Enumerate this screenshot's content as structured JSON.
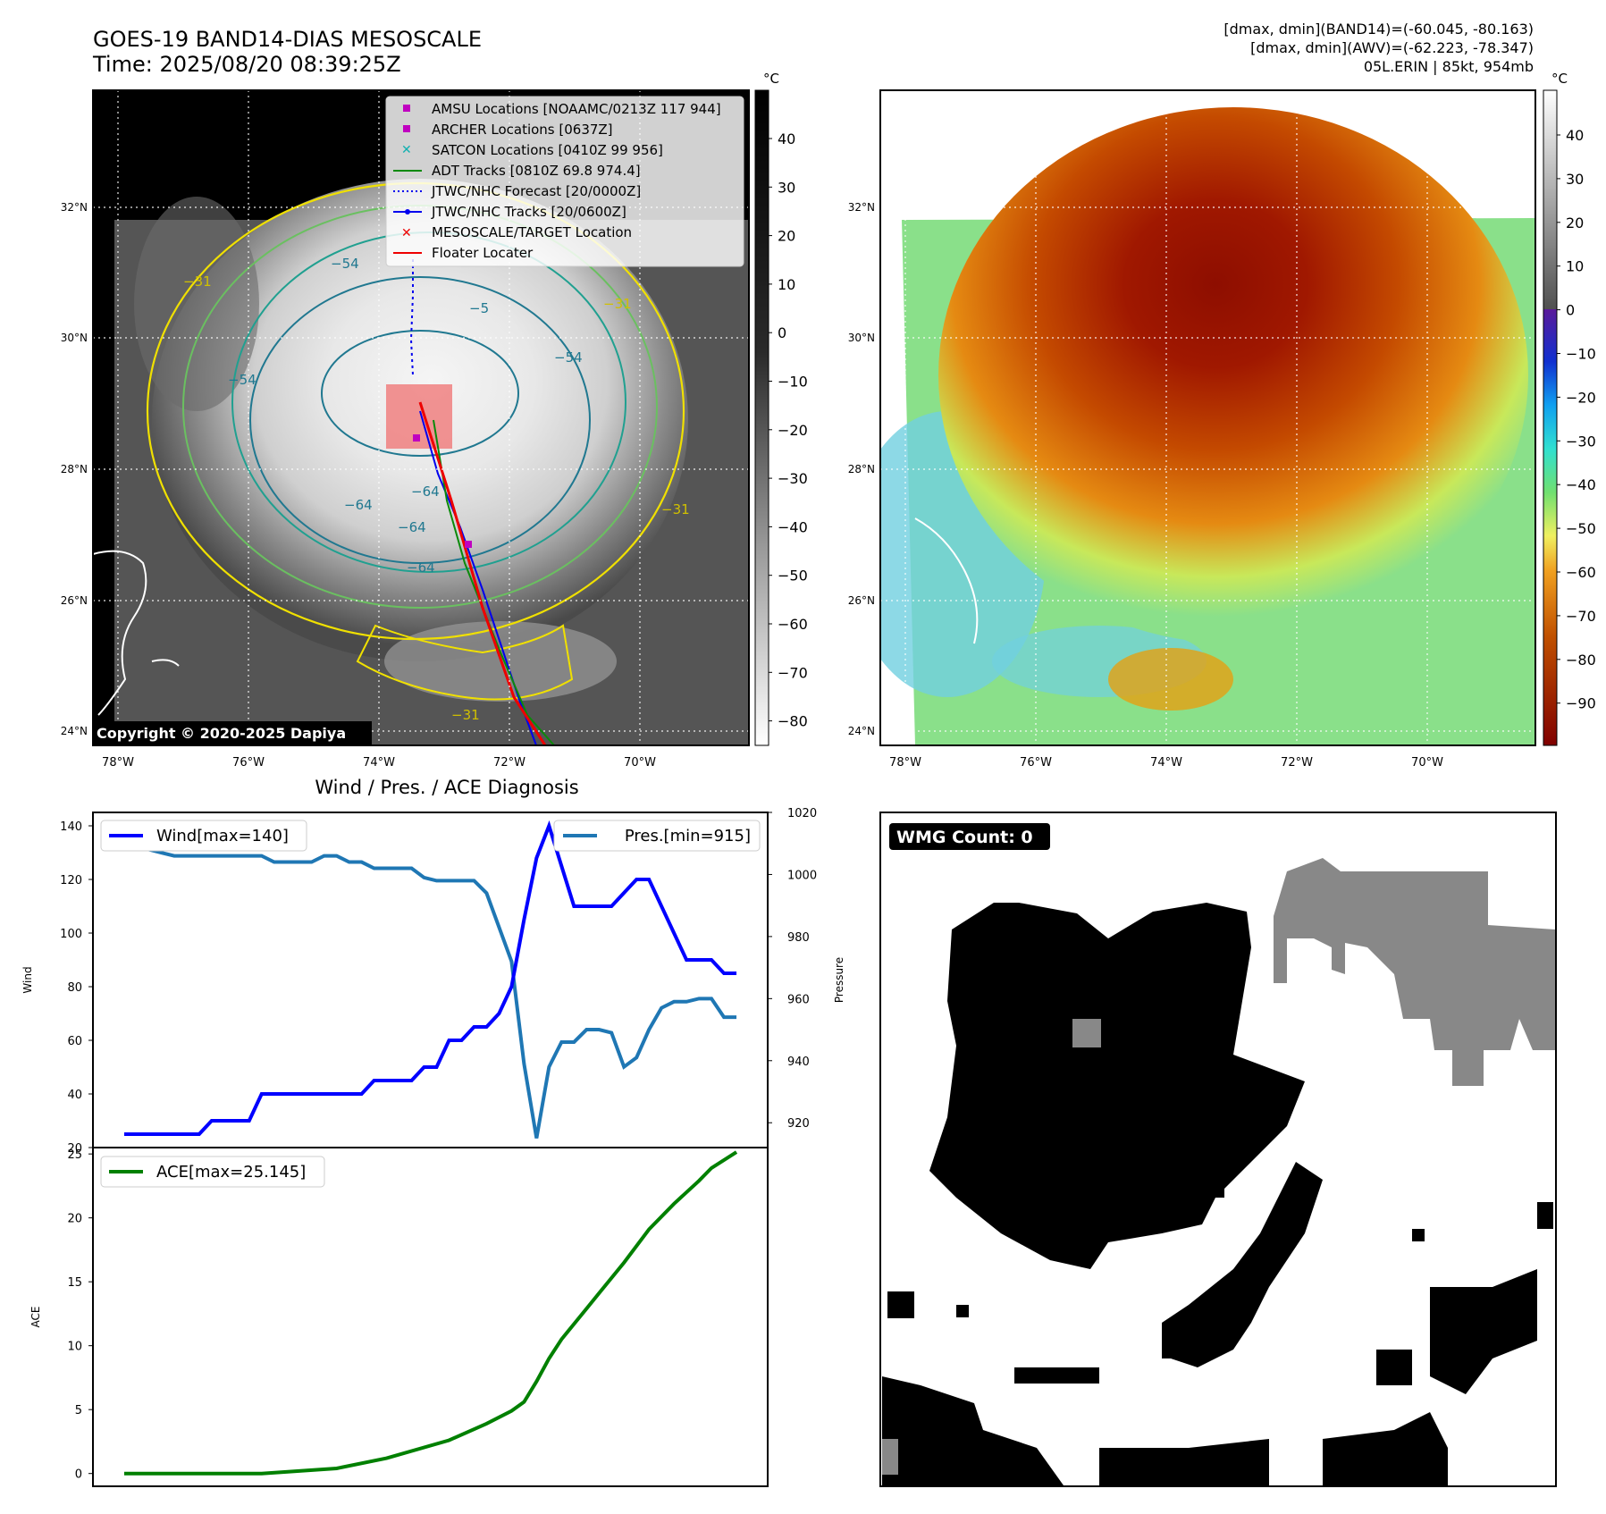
{
  "header": {
    "title_line1": "GOES-19 BAND14-DIAS MESOSCALE",
    "title_line2": "Time: 2025/08/20 08:39:25Z",
    "info_line1": "[dmax, dmin](BAND14)=(-60.045, -80.163)",
    "info_line2": "[dmax, dmin](AWV)=(-62.223, -78.347)",
    "info_line3": "05L.ERIN | 85kt, 954mb"
  },
  "colorbar_unit": "°C",
  "map_axes": {
    "lon_ticks": [
      "78°W",
      "76°W",
      "74°W",
      "72°W",
      "70°W"
    ],
    "lat_ticks": [
      "32°N",
      "30°N",
      "28°N",
      "26°N",
      "24°N"
    ]
  },
  "ir_colorbar_ticks": [
    "40",
    "30",
    "20",
    "10",
    "0",
    "−10",
    "−20",
    "−30",
    "−40",
    "−50",
    "−60",
    "−70",
    "−80"
  ],
  "awv_colorbar_ticks": [
    "40",
    "30",
    "20",
    "10",
    "0",
    "−10",
    "−20",
    "−30",
    "−40",
    "−50",
    "−60",
    "−70",
    "−80",
    "−90"
  ],
  "contour_labels": [
    "−64",
    "−64",
    "−64",
    "−64",
    "−54",
    "−54",
    "−54",
    "−5",
    "−31",
    "−31",
    "−31",
    "−31"
  ],
  "legend": [
    {
      "label": "AMSU Locations [NOAAMC/0213Z 117 944]",
      "color": "#c000c0",
      "marker": "square"
    },
    {
      "label": "ARCHER Locations [0637Z]",
      "color": "#c000c0",
      "marker": "square"
    },
    {
      "label": "SATCON Locations [0410Z 99 956]",
      "color": "#10b0b0",
      "marker": "x"
    },
    {
      "label": "ADT Tracks [0810Z 69.8 974.4]",
      "color": "#0a8a0a",
      "marker": "line"
    },
    {
      "label": "JTWC/NHC Forecast [20/0000Z]",
      "color": "#0000ee",
      "marker": "dotted"
    },
    {
      "label": "JTWC/NHC Tracks [20/0600Z]",
      "color": "#0000ee",
      "marker": "line-dot"
    },
    {
      "label": "MESOSCALE/TARGET Location",
      "color": "#ee0000",
      "marker": "x"
    },
    {
      "label": "Floater Locater",
      "color": "#ee0000",
      "marker": "line"
    }
  ],
  "copyright": "Copyright © 2020-2025 Dapiya",
  "diag_title": "Wind / Pres. / ACE Diagnosis",
  "wmg_label": "WMG Count: 0",
  "chart_data": [
    {
      "type": "line",
      "title": "Wind / Pres. / ACE Diagnosis",
      "ylabel": "Wind",
      "y2label": "Pressure",
      "ylim": [
        20,
        145
      ],
      "y2lim": [
        912,
        1020
      ],
      "yticks": [
        20,
        40,
        60,
        80,
        100,
        120,
        140
      ],
      "y2ticks": [
        920,
        940,
        960,
        980,
        1000,
        1020
      ],
      "x": [
        0,
        1,
        2,
        3,
        4,
        5,
        6,
        7,
        8,
        9,
        10,
        11,
        12,
        13,
        14,
        15,
        16,
        17,
        18,
        19,
        20,
        21,
        22,
        23,
        24,
        25,
        26,
        27,
        28,
        29,
        30,
        31,
        32,
        33,
        34,
        35,
        36,
        37,
        38,
        39,
        40,
        41,
        42,
        43,
        44,
        45,
        46,
        47,
        48,
        49
      ],
      "series": [
        {
          "name": "Wind[max=140]",
          "color": "#0000ff",
          "axis": "left",
          "values": [
            25,
            25,
            25,
            25,
            25,
            25,
            25,
            30,
            30,
            30,
            30,
            40,
            40,
            40,
            40,
            40,
            40,
            40,
            40,
            40,
            45,
            45,
            45,
            45,
            50,
            50,
            60,
            60,
            65,
            65,
            70,
            80,
            105,
            128,
            140,
            125,
            110,
            110,
            110,
            110,
            115,
            120,
            120,
            110,
            100,
            90,
            90,
            90,
            85,
            85
          ]
        },
        {
          "name": "Pres.[min=915]",
          "color": "#1f77b4",
          "axis": "right",
          "values": [
            1014,
            1014,
            1008,
            1007,
            1006,
            1006,
            1006,
            1006,
            1006,
            1006,
            1006,
            1006,
            1004,
            1004,
            1004,
            1004,
            1006,
            1006,
            1004,
            1004,
            1002,
            1002,
            1002,
            1002,
            999,
            998,
            998,
            998,
            998,
            994,
            983,
            972,
            939,
            915,
            938,
            946,
            946,
            950,
            950,
            949,
            938,
            941,
            950,
            957,
            959,
            959,
            960,
            960,
            954,
            954
          ]
        }
      ]
    },
    {
      "type": "line",
      "ylabel": "ACE",
      "ylim": [
        -1,
        25.5
      ],
      "yticks": [
        0,
        5,
        10,
        15,
        20,
        25
      ],
      "series": [
        {
          "name": "ACE[max=25.145]",
          "color": "#008000",
          "x": [
            0,
            8,
            11,
            17,
            21,
            26,
            29,
            31,
            32,
            33,
            34,
            35,
            36,
            37,
            38,
            40,
            42,
            44,
            45,
            46,
            47,
            49
          ],
          "values": [
            0,
            0,
            0,
            0.4,
            1.2,
            2.6,
            3.9,
            4.9,
            5.6,
            7.2,
            9.0,
            10.5,
            11.7,
            12.9,
            14.1,
            16.5,
            19.1,
            21.1,
            22.0,
            22.9,
            23.9,
            25.145
          ]
        }
      ]
    }
  ]
}
